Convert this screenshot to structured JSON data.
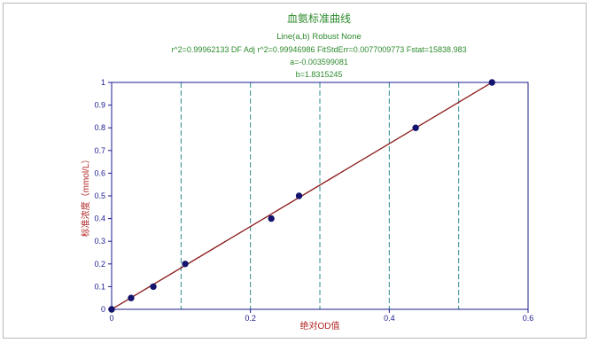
{
  "chart_data": {
    "type": "scatter",
    "title": "血氨标准曲线",
    "subtitle_lines": [
      "Line(a,b) Robust None",
      "r^2=0.99962133  DF Adj r^2=0.99946986  FitStdErr=0.0077009773  Fstat=15838.983",
      "a=-0.003599081",
      "b=1.8315245"
    ],
    "xlabel": "绝对OD值",
    "ylabel": "标准浓度（mmol/L）",
    "xlim": [
      0,
      0.6
    ],
    "ylim": [
      0,
      1
    ],
    "x_ticks": [
      "0",
      "0.2",
      "0.4",
      "0.6"
    ],
    "y_ticks": [
      "0",
      "0.1",
      "0.2",
      "0.3",
      "0.4",
      "0.5",
      "0.6",
      "0.7",
      "0.8",
      "0.9",
      "1"
    ],
    "x_gridlines": [
      0.1,
      0.2,
      0.3,
      0.4,
      0.5
    ],
    "grid": true,
    "series": [
      {
        "x": [
          0.0,
          0.028,
          0.06,
          0.106,
          0.23,
          0.27,
          0.438,
          0.548
        ],
        "y": [
          0.0,
          0.05,
          0.1,
          0.2,
          0.4,
          0.5,
          0.8,
          1.0
        ]
      }
    ],
    "fit_line": {
      "a": -0.003599081,
      "b": 1.8315245,
      "x_range": [
        0,
        0.548
      ]
    },
    "colors": {
      "title": "#2e8b2e",
      "axis": "#1a1a8c",
      "grid": "#2e8b8b",
      "fit_line": "#8b1a1a",
      "points": "#14146e",
      "axis_label": "#b22222"
    }
  }
}
